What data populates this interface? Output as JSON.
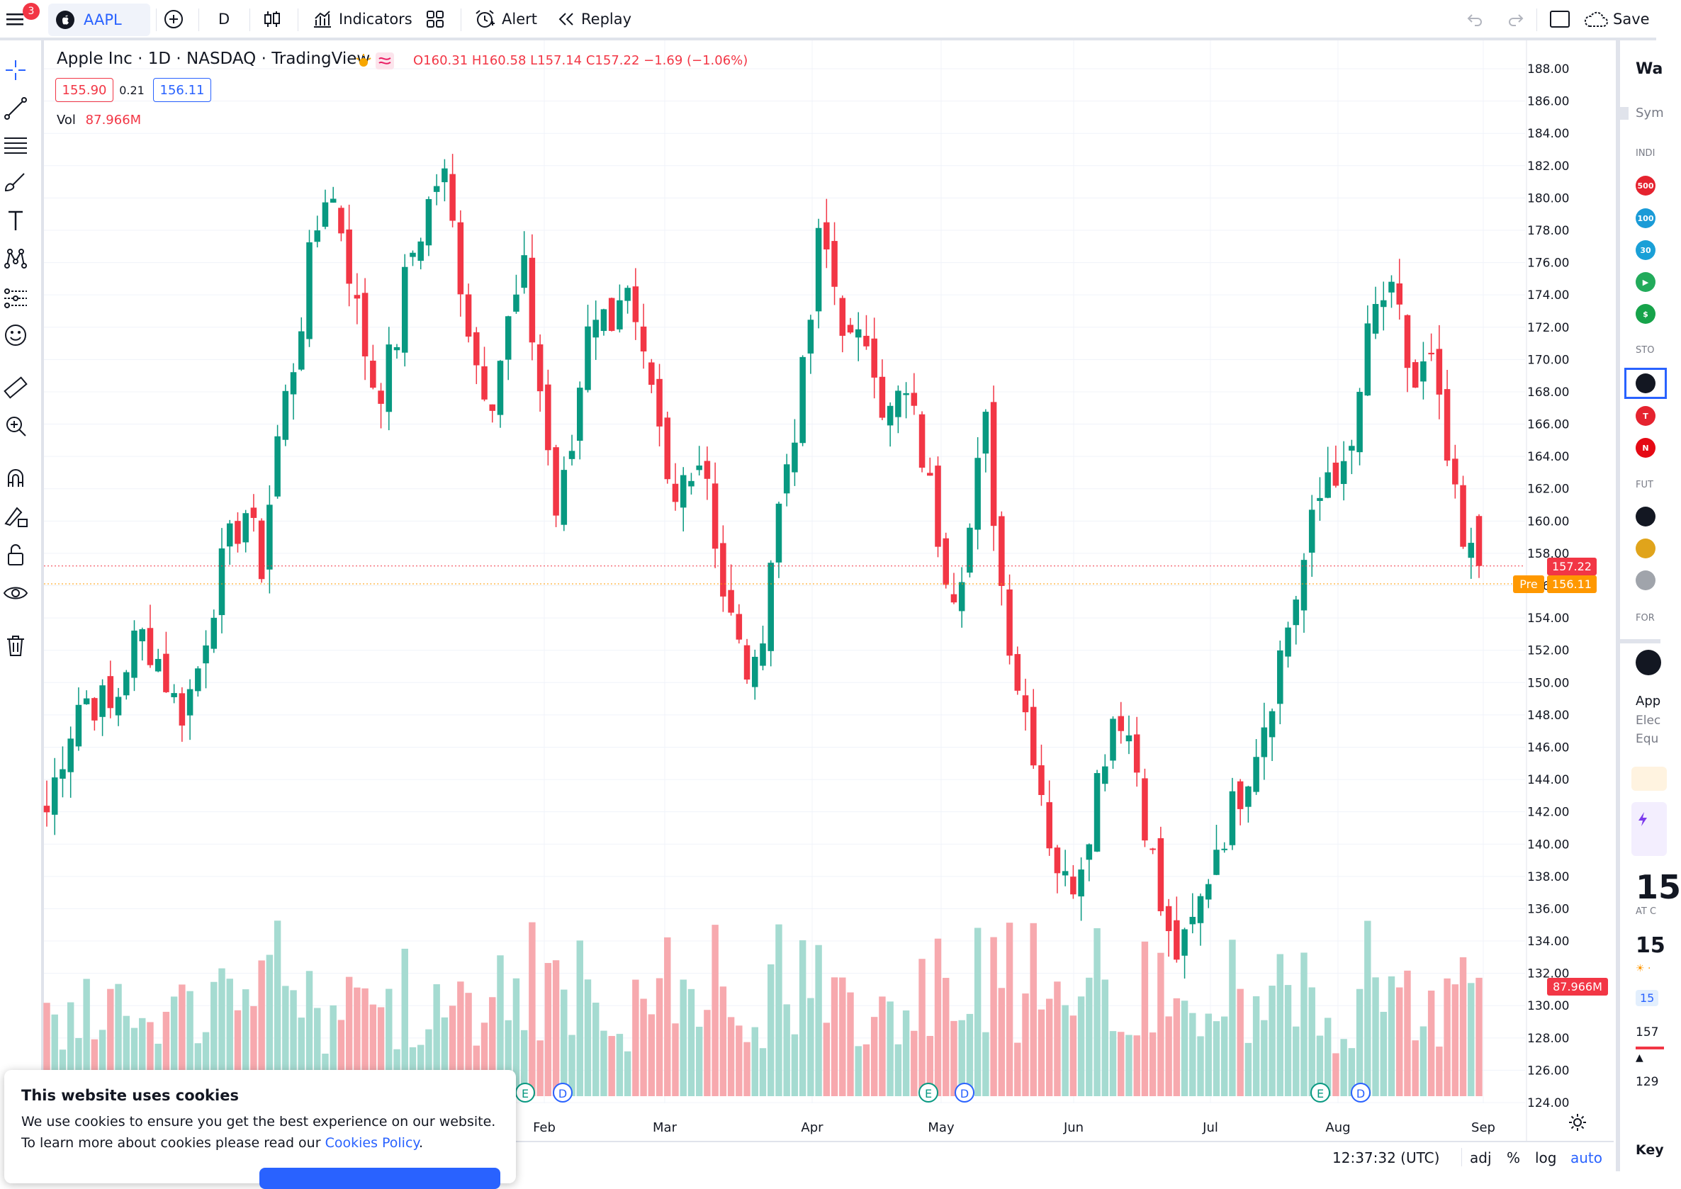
{
  "toolbar": {
    "menu_badge": "3",
    "symbol": "AAPL",
    "interval": "D",
    "indicators_label": "Indicators",
    "alert_label": "Alert",
    "replay_label": "Replay",
    "save_label": "Save"
  },
  "legend": {
    "title": "Apple Inc · 1D · NASDAQ · TradingView",
    "ohlc": "O160.31 H160.58 L157.14 C157.22 −1.69 (−1.06%)",
    "bid": "155.90",
    "spread": "0.21",
    "ask": "156.11",
    "vol_label": "Vol",
    "vol_value": "87.966M"
  },
  "price_axis": {
    "last_price": "157.22",
    "pre_label": "Pre",
    "pre_price": "156.11",
    "volume_tag": "87.966M"
  },
  "right_panel": {
    "watchlist_title": "Wa",
    "symbol_header": "Sym",
    "section_indices": "INDI",
    "section_stocks": "STO",
    "section_futures": "FUT",
    "section_forex": "FOR",
    "detail_name": "App",
    "detail_line1": "Elec",
    "detail_line2": "Equ",
    "big_price_1": "15",
    "at_close": "AT C",
    "big_price_2": "15",
    "small_1": "15",
    "small_2": "157",
    "small_3": "129",
    "key_stats": "Key",
    "badges": [
      {
        "text": "500",
        "color": "#e5232f"
      },
      {
        "text": "100",
        "color": "#1a9bd7"
      },
      {
        "text": "30",
        "color": "#1aa0d7"
      },
      {
        "text": "",
        "color": "#22ab5b"
      },
      {
        "text": "$",
        "color": "#16a34a"
      },
      {
        "text": "",
        "color": "#131722"
      },
      {
        "text": "T",
        "color": "#e5232f"
      },
      {
        "text": "N",
        "color": "#e50914"
      },
      {
        "text": "",
        "color": "#131722"
      },
      {
        "text": "",
        "color": "#e0a41b"
      },
      {
        "text": "",
        "color": "#a0a4ab"
      }
    ]
  },
  "bottom_bar": {
    "time": "12:37:32 (UTC)",
    "adj": "adj",
    "percent": "%",
    "log": "log",
    "auto": "auto"
  },
  "cookie": {
    "title": "This website uses cookies",
    "text": "We use cookies to ensure you get the best experience on our website. To learn more about cookies please read our ",
    "link": "Cookies Policy",
    "period": "."
  },
  "chart_data": {
    "type": "candlestick",
    "symbol": "AAPL",
    "y_axis_ticks": [
      "188.00",
      "186.00",
      "184.00",
      "182.00",
      "180.00",
      "178.00",
      "176.00",
      "174.00",
      "172.00",
      "170.00",
      "168.00",
      "166.00",
      "164.00",
      "162.00",
      "160.00",
      "158.00",
      "156.00",
      "154.00",
      "152.00",
      "150.00",
      "148.00",
      "146.00",
      "144.00",
      "142.00",
      "140.00",
      "138.00",
      "136.00",
      "134.00",
      "132.00",
      "130.00",
      "128.00",
      "126.00",
      "124.00"
    ],
    "ylim": [
      124,
      188
    ],
    "x_axis_labels": [
      "Feb",
      "Mar",
      "Apr",
      "May",
      "Jun",
      "Jul",
      "Aug",
      "Sep"
    ],
    "event_markers": [
      {
        "type": "E",
        "month": "Feb"
      },
      {
        "type": "D",
        "month": "Feb"
      },
      {
        "type": "E",
        "month": "May"
      },
      {
        "type": "D",
        "month": "May"
      },
      {
        "type": "E",
        "month": "Aug"
      },
      {
        "type": "D",
        "month": "Aug"
      }
    ],
    "close_path": [
      142,
      146,
      149,
      149,
      148,
      152,
      153,
      151,
      148,
      150,
      155,
      158,
      161,
      157,
      165,
      170,
      176,
      181,
      178,
      172,
      168,
      170,
      176,
      179,
      182,
      176,
      170,
      168,
      172,
      175,
      168,
      160,
      165,
      174,
      172,
      175,
      170,
      166,
      160,
      164,
      164,
      156,
      152,
      150,
      158,
      164,
      169,
      178,
      174,
      170,
      172,
      166,
      168,
      165,
      160,
      156,
      159,
      166,
      156,
      150,
      146,
      140,
      137,
      140,
      145,
      149,
      146,
      140,
      134,
      133,
      136,
      140,
      142,
      145,
      148,
      152,
      156,
      160,
      164,
      162,
      170,
      174,
      173,
      168,
      170,
      164,
      158,
      157.22
    ],
    "last": {
      "open": 160.31,
      "high": 160.58,
      "low": 157.14,
      "close": 157.22,
      "change": -1.69,
      "change_pct": -1.06
    },
    "pre_market": 156.11,
    "last_volume": "87.966M"
  }
}
